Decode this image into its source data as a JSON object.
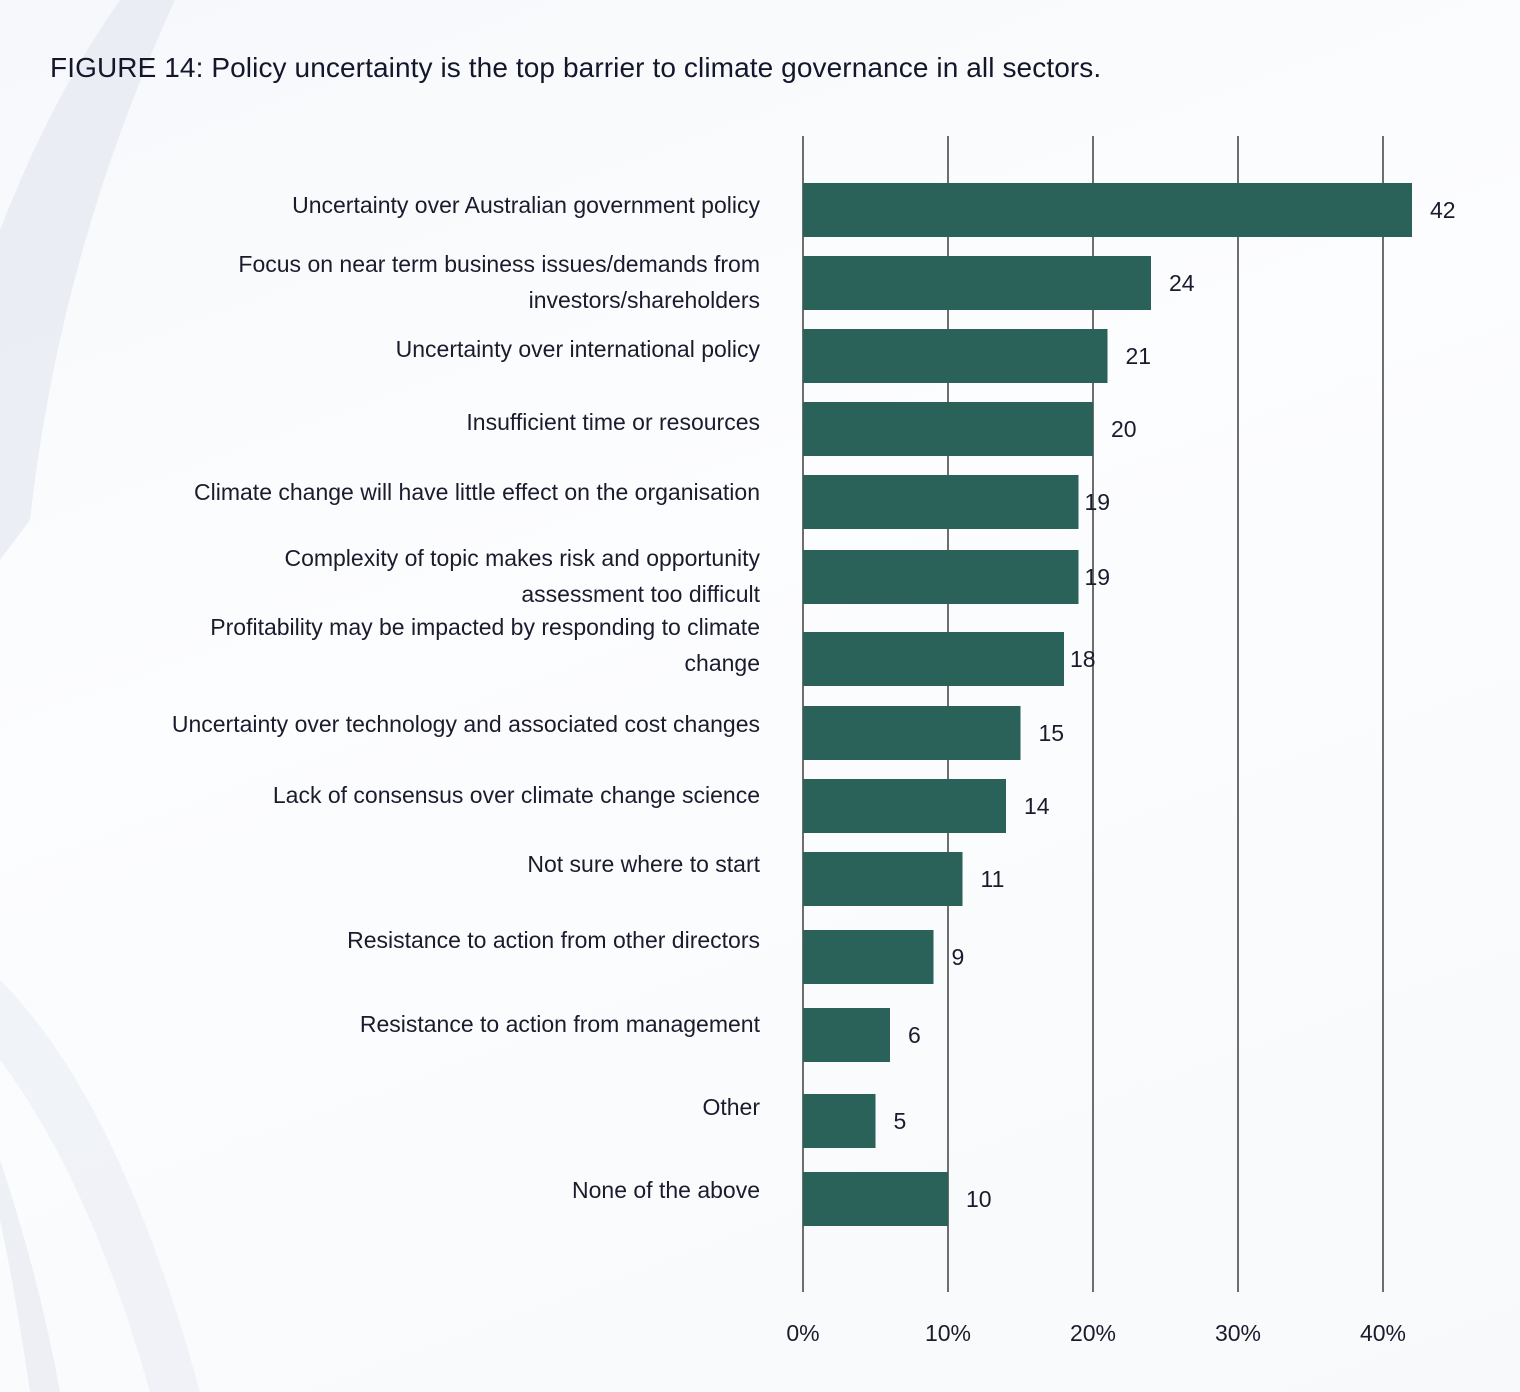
{
  "figure": {
    "title": "FIGURE 14: Policy uncertainty is the top barrier to climate governance in all sectors."
  },
  "colors": {
    "bar": "#2a6158",
    "grid": "#6e6e6e",
    "text": "#1a1c2e"
  },
  "chart_data": {
    "type": "bar",
    "orientation": "horizontal",
    "title": "FIGURE 14: Policy uncertainty is the top barrier to climate governance in all sectors.",
    "xlabel": "",
    "ylabel": "",
    "xlim": [
      0,
      40
    ],
    "grid": true,
    "x_ticks": [
      0,
      10,
      20,
      30,
      40
    ],
    "x_tick_labels": [
      "0%",
      "10%",
      "20%",
      "30%",
      "40%"
    ],
    "categories": [
      [
        "Uncertainty over Australian government policy"
      ],
      [
        "Focus on near term business issues/demands from",
        "investors/shareholders"
      ],
      [
        "Uncertainty over international policy"
      ],
      [
        "Insufficient time or resources"
      ],
      [
        "Climate change will have little effect on the organisation"
      ],
      [
        "Complexity of topic makes risk and opportunity",
        "assessment too difficult"
      ],
      [
        "Profitability may be impacted by responding to climate",
        "change"
      ],
      [
        "Uncertainty over technology and associated cost changes"
      ],
      [
        "Lack of consensus over climate change science"
      ],
      [
        "Not sure where to start"
      ],
      [
        "Resistance to action from other directors"
      ],
      [
        "Resistance to action from management"
      ],
      [
        "Other"
      ],
      [
        "None of the above"
      ]
    ],
    "values": [
      42,
      24,
      21,
      20,
      19,
      19,
      18,
      15,
      14,
      11,
      9,
      6,
      5,
      10
    ],
    "value_labels": [
      "42",
      "24",
      "21",
      "20",
      "19",
      "19",
      "18",
      "15",
      "14",
      "11",
      "9",
      "6",
      "5",
      "10"
    ]
  }
}
